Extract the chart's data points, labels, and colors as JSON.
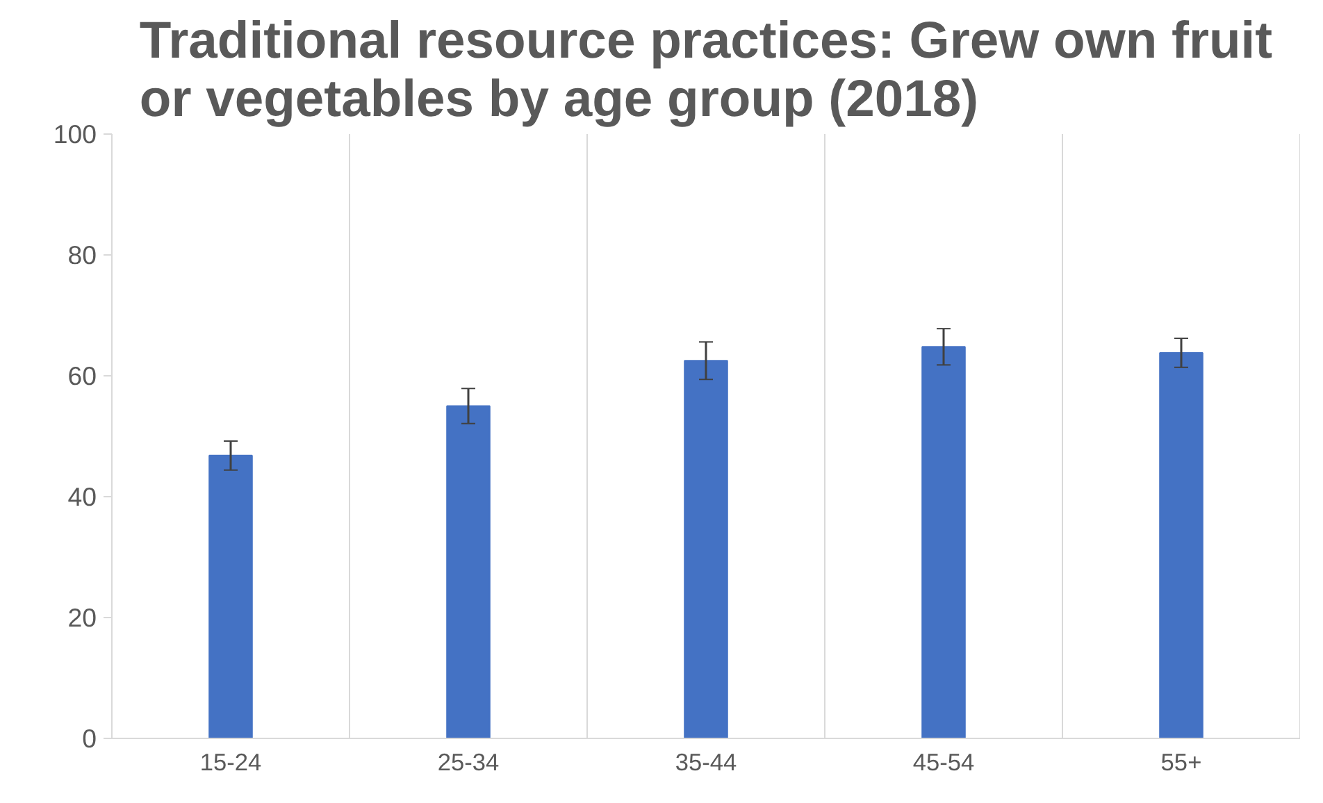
{
  "chart_data": {
    "type": "bar",
    "title": "Traditional resource practices: Grew own fruit or vegetables by age group (2018)",
    "categories": [
      "15-24",
      "25-34",
      "35-44",
      "45-54",
      "55+"
    ],
    "values": [
      46.8,
      55.0,
      62.5,
      64.8,
      63.8
    ],
    "errors": [
      2.4,
      2.9,
      3.1,
      3.0,
      2.4
    ],
    "color": "#4472c4",
    "ylim": [
      0,
      100
    ],
    "yticks": [
      0,
      20,
      40,
      60,
      80,
      100
    ],
    "grid": "x"
  }
}
